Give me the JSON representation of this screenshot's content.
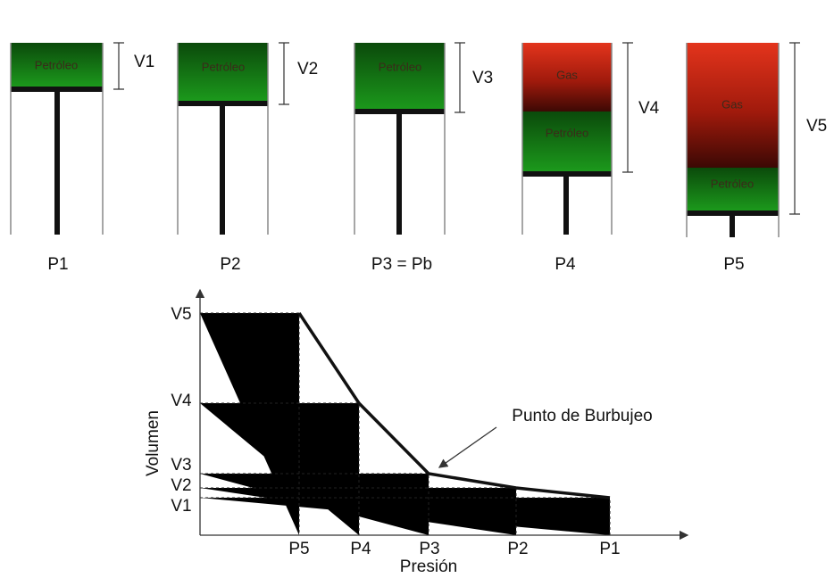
{
  "cylinders": [
    {
      "label": "P1",
      "volume_label": "V1",
      "fluids": [
        "Petróleo"
      ]
    },
    {
      "label": "P2",
      "volume_label": "V2",
      "fluids": [
        "Petróleo"
      ]
    },
    {
      "label": "P3 = Pb",
      "volume_label": "V3",
      "fluids": [
        "Petróleo"
      ]
    },
    {
      "label": "P4",
      "volume_label": "V4",
      "fluids": [
        "Gas",
        "Petróleo"
      ]
    },
    {
      "label": "P5",
      "volume_label": "V5",
      "fluids": [
        "Gas",
        "Petróleo"
      ]
    }
  ],
  "graph": {
    "y_axis_title": "Volumen",
    "x_axis_title": "Presión",
    "y_labels": [
      "V5",
      "V4",
      "V3",
      "V2",
      "V1"
    ],
    "x_labels": [
      "P5",
      "P4",
      "P3",
      "P2",
      "P1"
    ],
    "annotation": "Punto de Burbujeo"
  }
}
